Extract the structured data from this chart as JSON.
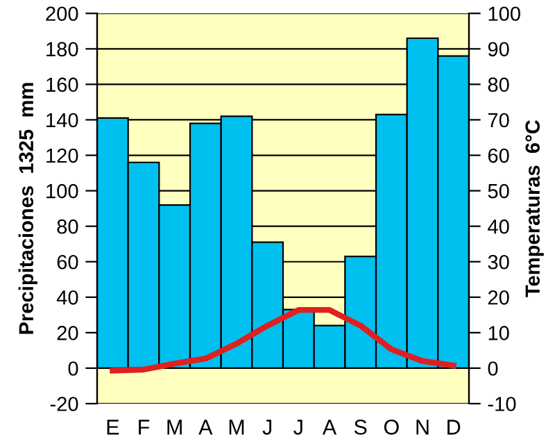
{
  "chart_data": {
    "type": "bar",
    "categories": [
      "E",
      "F",
      "M",
      "A",
      "M",
      "J",
      "J",
      "A",
      "S",
      "O",
      "N",
      "D"
    ],
    "ylabel": "Precipitaciones  1325  mm",
    "y2label": "Temperaturas  6°C",
    "series": [
      {
        "color": "#00c0f0",
        "values": [
          141,
          116,
          92,
          138,
          142,
          71,
          33,
          24,
          63,
          143,
          186,
          176
        ]
      },
      {
        "type": "line",
        "axis": "y2",
        "color": "#e02020",
        "values": [
          -0.7,
          -0.4,
          1.3,
          2.7,
          6.9,
          12,
          16.4,
          16.4,
          12,
          5.3,
          2,
          0.7
        ]
      }
    ],
    "ylim": [
      -20,
      200
    ],
    "yticks": [
      -20,
      0,
      20,
      40,
      60,
      80,
      100,
      120,
      140,
      160,
      180,
      200
    ],
    "y2lim": [
      -10,
      100
    ],
    "y2ticks": [
      -10,
      0,
      10,
      20,
      30,
      40,
      50,
      60,
      70,
      80,
      90,
      100
    ],
    "grid": "y",
    "marker": "none",
    "line_style": "solid"
  }
}
